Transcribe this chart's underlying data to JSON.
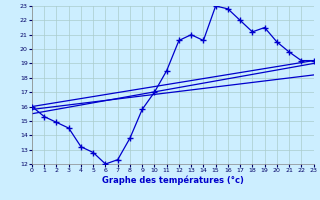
{
  "xlabel": "Graphe des températures (°c)",
  "bg_color": "#cceeff",
  "grid_color": "#aacccc",
  "line_color": "#0000cc",
  "xlim": [
    0,
    23
  ],
  "ylim": [
    12,
    23
  ],
  "xticks": [
    0,
    1,
    2,
    3,
    4,
    5,
    6,
    7,
    8,
    9,
    10,
    11,
    12,
    13,
    14,
    15,
    16,
    17,
    18,
    19,
    20,
    21,
    22,
    23
  ],
  "yticks": [
    12,
    13,
    14,
    15,
    16,
    17,
    18,
    19,
    20,
    21,
    22,
    23
  ],
  "series1_x": [
    0,
    1,
    2,
    3,
    4,
    5,
    6,
    7,
    8,
    9,
    10,
    11,
    12,
    13,
    14,
    15,
    16,
    17,
    18,
    19,
    20,
    21,
    22,
    23
  ],
  "series1_y": [
    16.0,
    15.3,
    14.9,
    14.5,
    13.2,
    12.8,
    12.0,
    12.3,
    13.8,
    15.8,
    17.0,
    18.5,
    20.6,
    21.0,
    20.6,
    23.0,
    22.8,
    22.0,
    21.2,
    21.5,
    20.5,
    19.8,
    19.2,
    19.2
  ],
  "line2_x": [
    0,
    23
  ],
  "line2_y": [
    16.0,
    19.2
  ],
  "line3_x": [
    0,
    23
  ],
  "line3_y": [
    15.5,
    19.0
  ],
  "line4_x": [
    0,
    23
  ],
  "line4_y": [
    15.8,
    18.2
  ]
}
